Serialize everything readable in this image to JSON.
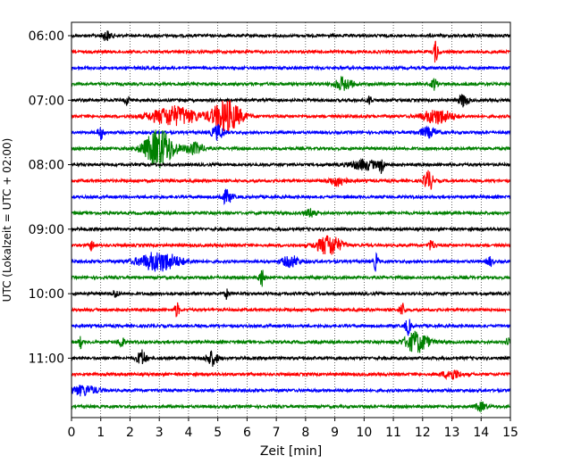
{
  "chart_data": {
    "type": "line",
    "title": "",
    "xlabel": "Zeit  [min]",
    "ylabel": "UTC (Lokalzeit = UTC + 02:00)",
    "xlim": [
      0,
      15
    ],
    "x_ticks": [
      0,
      1,
      2,
      3,
      4,
      5,
      6,
      7,
      8,
      9,
      10,
      11,
      12,
      13,
      14,
      15
    ],
    "x_tick_labels": [
      "0",
      "1",
      "2",
      "3",
      "4",
      "5",
      "6",
      "7",
      "8",
      "9",
      "10",
      "11",
      "12",
      "13",
      "14",
      "15"
    ],
    "y_ticks": [
      {
        "label": "06:00",
        "trace": 0
      },
      {
        "label": "07:00",
        "trace": 4
      },
      {
        "label": "08:00",
        "trace": 8
      },
      {
        "label": "09:00",
        "trace": 12
      },
      {
        "label": "10:00",
        "trace": 16
      },
      {
        "label": "11:00",
        "trace": 20
      }
    ],
    "grid": {
      "vertical": "dotted",
      "horizontal": false
    },
    "color_cycle": [
      "#000000",
      "#ff0000",
      "#0000ff",
      "#008000"
    ],
    "trace_minutes_per_row": 15,
    "start_time": "06:00",
    "traces": [
      {
        "time": "06:00",
        "color": "#000000",
        "events": [
          {
            "t": 1.2,
            "amp": 0.6,
            "w": 0.15
          }
        ]
      },
      {
        "time": "06:15",
        "color": "#ff0000",
        "events": [
          {
            "t": 12.45,
            "amp": 1.4,
            "w": 0.08
          }
        ]
      },
      {
        "time": "06:30",
        "color": "#0000ff",
        "events": []
      },
      {
        "time": "06:45",
        "color": "#008000",
        "events": [
          {
            "t": 9.3,
            "amp": 0.8,
            "w": 0.3
          },
          {
            "t": 12.4,
            "amp": 0.7,
            "w": 0.1
          }
        ]
      },
      {
        "time": "07:00",
        "color": "#000000",
        "events": [
          {
            "t": 1.9,
            "amp": 0.6,
            "w": 0.08
          },
          {
            "t": 10.2,
            "amp": 0.6,
            "w": 0.08
          },
          {
            "t": 13.4,
            "amp": 0.8,
            "w": 0.15
          }
        ]
      },
      {
        "time": "07:15",
        "color": "#ff0000",
        "events": [
          {
            "t": 3.5,
            "amp": 1.2,
            "w": 0.8
          },
          {
            "t": 5.3,
            "amp": 2.0,
            "w": 0.5
          },
          {
            "t": 12.5,
            "amp": 0.9,
            "w": 0.5
          }
        ]
      },
      {
        "time": "07:30",
        "color": "#0000ff",
        "events": [
          {
            "t": 1.0,
            "amp": 0.8,
            "w": 0.1
          },
          {
            "t": 5.0,
            "amp": 0.9,
            "w": 0.2
          },
          {
            "t": 12.2,
            "amp": 0.6,
            "w": 0.3
          }
        ]
      },
      {
        "time": "07:45",
        "color": "#008000",
        "events": [
          {
            "t": 3.0,
            "amp": 2.4,
            "w": 0.5
          },
          {
            "t": 4.2,
            "amp": 0.7,
            "w": 0.3
          }
        ]
      },
      {
        "time": "08:00",
        "color": "#000000",
        "events": [
          {
            "t": 10.0,
            "amp": 0.6,
            "w": 0.5
          },
          {
            "t": 10.6,
            "amp": 0.9,
            "w": 0.08
          }
        ]
      },
      {
        "time": "08:15",
        "color": "#ff0000",
        "events": [
          {
            "t": 9.1,
            "amp": 0.6,
            "w": 0.3
          },
          {
            "t": 12.2,
            "amp": 1.3,
            "w": 0.15
          }
        ]
      },
      {
        "time": "08:30",
        "color": "#0000ff",
        "events": [
          {
            "t": 5.3,
            "amp": 0.8,
            "w": 0.2
          }
        ]
      },
      {
        "time": "08:45",
        "color": "#008000",
        "events": [
          {
            "t": 8.2,
            "amp": 0.5,
            "w": 0.2
          }
        ]
      },
      {
        "time": "09:00",
        "color": "#000000",
        "events": []
      },
      {
        "time": "09:15",
        "color": "#ff0000",
        "events": [
          {
            "t": 0.7,
            "amp": 0.9,
            "w": 0.06
          },
          {
            "t": 8.8,
            "amp": 1.3,
            "w": 0.4
          },
          {
            "t": 12.3,
            "amp": 0.6,
            "w": 0.1
          }
        ]
      },
      {
        "time": "09:30",
        "color": "#0000ff",
        "events": [
          {
            "t": 3.0,
            "amp": 1.2,
            "w": 0.7
          },
          {
            "t": 7.5,
            "amp": 0.7,
            "w": 0.3
          },
          {
            "t": 10.4,
            "amp": 1.1,
            "w": 0.08
          },
          {
            "t": 14.3,
            "amp": 0.6,
            "w": 0.1
          }
        ]
      },
      {
        "time": "09:45",
        "color": "#008000",
        "events": [
          {
            "t": 6.5,
            "amp": 1.2,
            "w": 0.08
          }
        ]
      },
      {
        "time": "10:00",
        "color": "#000000",
        "events": [
          {
            "t": 1.5,
            "amp": 0.5,
            "w": 0.1
          },
          {
            "t": 5.3,
            "amp": 0.6,
            "w": 0.06
          }
        ]
      },
      {
        "time": "10:15",
        "color": "#ff0000",
        "events": [
          {
            "t": 3.6,
            "amp": 0.9,
            "w": 0.08
          },
          {
            "t": 11.3,
            "amp": 0.8,
            "w": 0.1
          }
        ]
      },
      {
        "time": "10:30",
        "color": "#0000ff",
        "events": [
          {
            "t": 11.5,
            "amp": 1.0,
            "w": 0.1
          }
        ]
      },
      {
        "time": "10:45",
        "color": "#008000",
        "events": [
          {
            "t": 0.3,
            "amp": 0.8,
            "w": 0.06
          },
          {
            "t": 1.7,
            "amp": 0.7,
            "w": 0.1
          },
          {
            "t": 11.8,
            "amp": 1.3,
            "w": 0.4
          },
          {
            "t": 14.9,
            "amp": 0.7,
            "w": 0.06
          }
        ]
      },
      {
        "time": "11:00",
        "color": "#000000",
        "events": [
          {
            "t": 2.4,
            "amp": 1.0,
            "w": 0.15
          },
          {
            "t": 4.8,
            "amp": 0.9,
            "w": 0.2
          }
        ]
      },
      {
        "time": "11:15",
        "color": "#ff0000",
        "events": [
          {
            "t": 13.0,
            "amp": 0.6,
            "w": 0.3
          }
        ]
      },
      {
        "time": "11:30",
        "color": "#0000ff",
        "events": [
          {
            "t": 0.4,
            "amp": 0.6,
            "w": 0.5
          }
        ]
      },
      {
        "time": "11:45",
        "color": "#008000",
        "events": [
          {
            "t": 14.0,
            "amp": 0.5,
            "w": 0.2
          }
        ]
      }
    ]
  }
}
